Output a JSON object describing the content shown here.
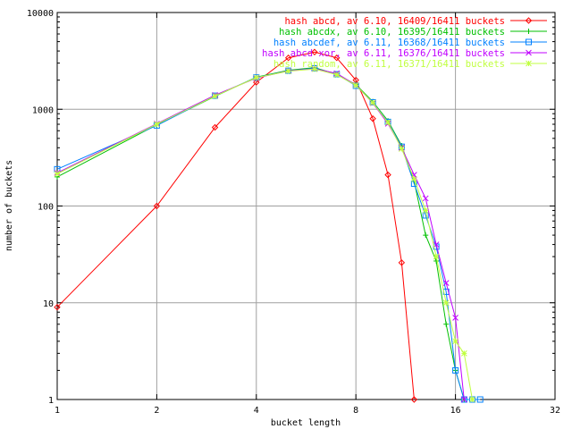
{
  "chart_data": {
    "type": "line",
    "title": "",
    "xlabel": "bucket length",
    "ylabel": "number of buckets",
    "xscale": "log2",
    "yscale": "log10",
    "xlim": [
      1,
      32
    ],
    "ylim": [
      1,
      10000
    ],
    "xticks": [
      "1",
      "2",
      "4",
      "8",
      "16",
      "32"
    ],
    "yticks": [
      "1",
      "10",
      "100",
      "1000",
      "10000"
    ],
    "grid": true,
    "legend_position": "top-right",
    "series": [
      {
        "name": "hash abcd, av 6.10, 16409/16411 buckets",
        "color": "#ff0000",
        "marker": "diamond",
        "x": [
          1,
          2,
          3,
          4,
          5,
          6,
          7,
          8,
          9,
          10,
          11,
          12
        ],
        "y": [
          9,
          100,
          650,
          1900,
          3400,
          3900,
          3400,
          2000,
          800,
          210,
          26,
          1
        ]
      },
      {
        "name": "hash abcdx, av 6.10, 16395/16411 buckets",
        "color": "#00c000",
        "marker": "plus",
        "x": [
          1,
          2,
          3,
          4,
          5,
          6,
          7,
          8,
          9,
          10,
          11,
          12,
          13,
          14,
          15,
          16,
          17
        ],
        "y": [
          200,
          690,
          1360,
          2150,
          2530,
          2700,
          2300,
          1800,
          1200,
          760,
          420,
          180,
          50,
          27,
          6,
          2,
          1
        ]
      },
      {
        "name": "hash abcdef, av 6.11, 16368/16411 buckets",
        "color": "#0080ff",
        "marker": "square",
        "x": [
          1,
          2,
          3,
          4,
          5,
          6,
          7,
          8,
          9,
          10,
          11,
          12,
          13,
          14,
          15,
          16,
          17,
          18,
          19
        ],
        "y": [
          240,
          680,
          1380,
          2130,
          2500,
          2650,
          2300,
          1750,
          1180,
          740,
          410,
          170,
          80,
          38,
          13,
          2,
          1,
          1,
          1
        ]
      },
      {
        "name": "hash abcd xor, av 6.11, 16376/16411 buckets",
        "color": "#c000ff",
        "marker": "cross",
        "x": [
          1,
          2,
          3,
          4,
          5,
          6,
          7,
          8,
          9,
          10,
          11,
          12,
          13,
          14,
          15,
          16,
          17
        ],
        "y": [
          220,
          710,
          1400,
          2100,
          2500,
          2620,
          2350,
          1780,
          1160,
          710,
          400,
          210,
          120,
          40,
          16,
          7,
          1
        ]
      },
      {
        "name": "hash random, av 6.11, 16371/16411 buckets",
        "color": "#c0ff40",
        "marker": "star",
        "x": [
          1,
          2,
          3,
          4,
          5,
          6,
          7,
          8,
          9,
          10,
          11,
          12,
          13,
          14,
          15,
          16,
          17,
          18
        ],
        "y": [
          215,
          700,
          1370,
          2120,
          2480,
          2600,
          2280,
          1770,
          1170,
          730,
          390,
          190,
          90,
          30,
          10,
          4,
          3,
          1
        ]
      }
    ]
  }
}
